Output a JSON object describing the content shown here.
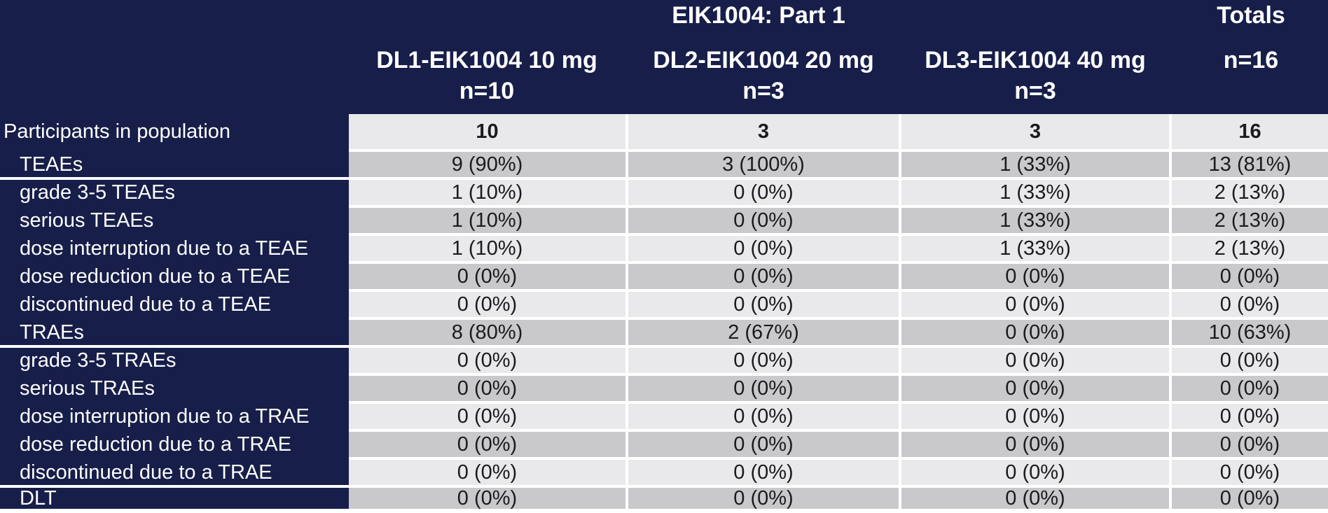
{
  "chart_data": {
    "type": "table",
    "group_header": "EIK1004: Part 1",
    "totals_header": "Totals",
    "totals_n": "n=16",
    "dose_columns": [
      {
        "label": "DL1-EIK1004 10 mg",
        "n": "n=10"
      },
      {
        "label": "DL2-EIK1004 20 mg",
        "n": "n=3"
      },
      {
        "label": "DL3-EIK1004 40 mg",
        "n": "n=3"
      }
    ],
    "value_column_order": [
      "DL1-EIK1004 10 mg",
      "DL2-EIK1004 20 mg",
      "DL3-EIK1004 40 mg",
      "Totals"
    ],
    "rows": [
      {
        "label": "Participants in population",
        "indent": false,
        "bold_values": true,
        "values": [
          "10",
          "3",
          "3",
          "16"
        ]
      },
      {
        "label": "TEAEs",
        "indent": true,
        "bold_values": false,
        "values": [
          "9 (90%)",
          "3 (100%)",
          "1 (33%)",
          "13 (81%)"
        ]
      },
      {
        "label": "grade 3-5 TEAEs",
        "indent": true,
        "bold_values": false,
        "values": [
          "1 (10%)",
          "0 (0%)",
          "1 (33%)",
          "2 (13%)"
        ]
      },
      {
        "label": "serious TEAEs",
        "indent": true,
        "bold_values": false,
        "values": [
          "1 (10%)",
          "0 (0%)",
          "1 (33%)",
          "2 (13%)"
        ]
      },
      {
        "label": "dose interruption due to a TEAE",
        "indent": true,
        "bold_values": false,
        "values": [
          "1 (10%)",
          "0 (0%)",
          "1 (33%)",
          "2 (13%)"
        ]
      },
      {
        "label": "dose reduction due to a TEAE",
        "indent": true,
        "bold_values": false,
        "values": [
          "0 (0%)",
          "0 (0%)",
          "0 (0%)",
          "0 (0%)"
        ]
      },
      {
        "label": "discontinued due to a TEAE",
        "indent": true,
        "bold_values": false,
        "values": [
          "0 (0%)",
          "0 (0%)",
          "0 (0%)",
          "0 (0%)"
        ]
      },
      {
        "label": "TRAEs",
        "indent": true,
        "bold_values": false,
        "values": [
          "8 (80%)",
          "2 (67%)",
          "0 (0%)",
          "10 (63%)"
        ]
      },
      {
        "label": "grade 3-5 TRAEs",
        "indent": true,
        "bold_values": false,
        "values": [
          "0 (0%)",
          "0 (0%)",
          "0 (0%)",
          "0 (0%)"
        ]
      },
      {
        "label": "serious TRAEs",
        "indent": true,
        "bold_values": false,
        "values": [
          "0 (0%)",
          "0 (0%)",
          "0 (0%)",
          "0 (0%)"
        ]
      },
      {
        "label": "dose interruption due to a TRAE",
        "indent": true,
        "bold_values": false,
        "values": [
          "0 (0%)",
          "0 (0%)",
          "0 (0%)",
          "0 (0%)"
        ]
      },
      {
        "label": "dose reduction due to a TRAE",
        "indent": true,
        "bold_values": false,
        "values": [
          "0 (0%)",
          "0 (0%)",
          "0 (0%)",
          "0 (0%)"
        ]
      },
      {
        "label": "discontinued due to a TRAE",
        "indent": true,
        "bold_values": false,
        "values": [
          "0 (0%)",
          "0 (0%)",
          "0 (0%)",
          "0 (0%)"
        ]
      },
      {
        "label": "DLT",
        "indent": true,
        "bold_values": false,
        "values": [
          "0 (0%)",
          "0 (0%)",
          "0 (0%)",
          "0 (0%)"
        ]
      }
    ],
    "colors": {
      "background_navy": "#171e49",
      "row_light": "#e9e9eb",
      "row_dark": "#c9c9cb",
      "separator_white": "#ffffff",
      "header_text": "#ffffff",
      "cell_text": "#1b1b1d"
    },
    "layout_hints": {
      "grid": "white separators between rows and columns",
      "group_separators_after": [
        "TEAEs",
        "TRAEs",
        "discontinued due to a TRAE"
      ]
    }
  }
}
